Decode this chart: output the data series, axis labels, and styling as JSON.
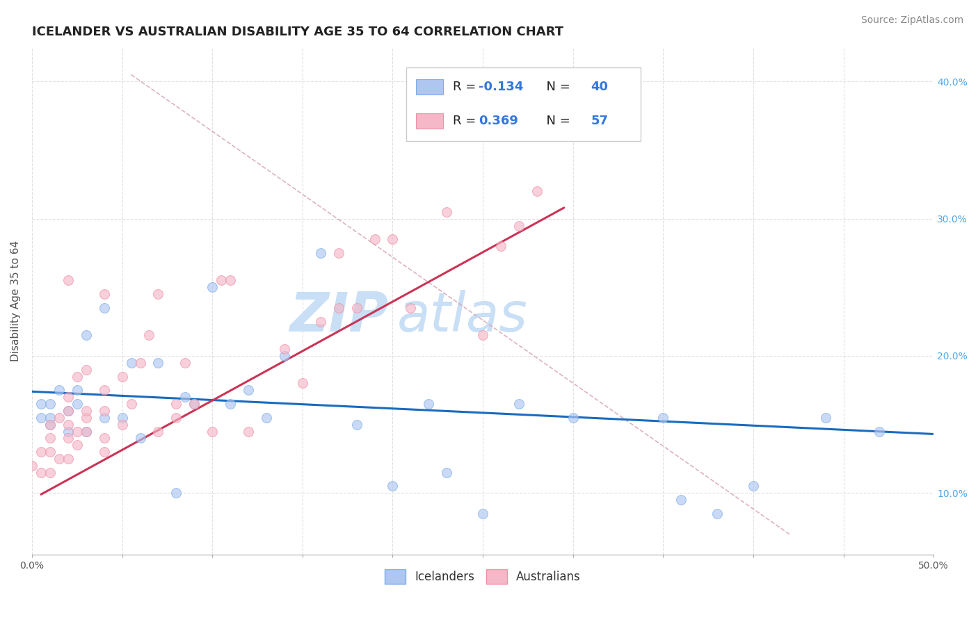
{
  "title": "ICELANDER VS AUSTRALIAN DISABILITY AGE 35 TO 64 CORRELATION CHART",
  "source": "Source: ZipAtlas.com",
  "ylabel": "Disability Age 35 to 64",
  "xlim": [
    0.0,
    0.5
  ],
  "ylim": [
    0.055,
    0.425
  ],
  "xticks": [
    0.0,
    0.05,
    0.1,
    0.15,
    0.2,
    0.25,
    0.3,
    0.35,
    0.4,
    0.45,
    0.5
  ],
  "xtick_labels_show": [
    "0.0%",
    "",
    "",
    "",
    "",
    "",
    "",
    "",
    "",
    "",
    "50.0%"
  ],
  "yticks": [
    0.1,
    0.2,
    0.3,
    0.4
  ],
  "ytick_labels": [
    "10.0%",
    "20.0%",
    "30.0%",
    "40.0%"
  ],
  "legend_entries": [
    {
      "label": "Icelanders",
      "R": "-0.134",
      "N": "40",
      "face_color": "#aec6f0",
      "edge_color": "#7baee8"
    },
    {
      "label": "Australians",
      "R": "0.369",
      "N": "57",
      "face_color": "#f4b8c8",
      "edge_color": "#f090a8"
    }
  ],
  "blue_scatter_x": [
    0.005,
    0.005,
    0.01,
    0.01,
    0.01,
    0.015,
    0.02,
    0.02,
    0.025,
    0.025,
    0.03,
    0.03,
    0.04,
    0.04,
    0.05,
    0.055,
    0.06,
    0.07,
    0.08,
    0.085,
    0.09,
    0.1,
    0.11,
    0.12,
    0.13,
    0.14,
    0.16,
    0.18,
    0.2,
    0.22,
    0.23,
    0.25,
    0.27,
    0.3,
    0.35,
    0.36,
    0.38,
    0.4,
    0.44,
    0.47
  ],
  "blue_scatter_y": [
    0.155,
    0.165,
    0.15,
    0.155,
    0.165,
    0.175,
    0.145,
    0.16,
    0.165,
    0.175,
    0.145,
    0.215,
    0.155,
    0.235,
    0.155,
    0.195,
    0.14,
    0.195,
    0.1,
    0.17,
    0.165,
    0.25,
    0.165,
    0.175,
    0.155,
    0.2,
    0.275,
    0.15,
    0.105,
    0.165,
    0.115,
    0.085,
    0.165,
    0.155,
    0.155,
    0.095,
    0.085,
    0.105,
    0.155,
    0.145
  ],
  "pink_scatter_x": [
    0.0,
    0.005,
    0.005,
    0.01,
    0.01,
    0.01,
    0.01,
    0.015,
    0.015,
    0.02,
    0.02,
    0.02,
    0.02,
    0.02,
    0.02,
    0.025,
    0.025,
    0.025,
    0.03,
    0.03,
    0.03,
    0.03,
    0.04,
    0.04,
    0.04,
    0.04,
    0.04,
    0.05,
    0.05,
    0.055,
    0.06,
    0.065,
    0.07,
    0.07,
    0.08,
    0.08,
    0.085,
    0.09,
    0.1,
    0.105,
    0.11,
    0.12,
    0.14,
    0.15,
    0.16,
    0.17,
    0.17,
    0.18,
    0.19,
    0.2,
    0.21,
    0.23,
    0.24,
    0.25,
    0.26,
    0.27,
    0.28
  ],
  "pink_scatter_y": [
    0.12,
    0.115,
    0.13,
    0.115,
    0.13,
    0.14,
    0.15,
    0.125,
    0.155,
    0.125,
    0.14,
    0.15,
    0.16,
    0.17,
    0.255,
    0.135,
    0.145,
    0.185,
    0.145,
    0.155,
    0.16,
    0.19,
    0.13,
    0.14,
    0.16,
    0.175,
    0.245,
    0.15,
    0.185,
    0.165,
    0.195,
    0.215,
    0.145,
    0.245,
    0.155,
    0.165,
    0.195,
    0.165,
    0.145,
    0.255,
    0.255,
    0.145,
    0.205,
    0.18,
    0.225,
    0.235,
    0.275,
    0.235,
    0.285,
    0.285,
    0.235,
    0.305,
    0.37,
    0.215,
    0.28,
    0.295,
    0.32
  ],
  "blue_line_x": [
    0.0,
    0.5
  ],
  "blue_line_y": [
    0.174,
    0.143
  ],
  "pink_line_x": [
    0.005,
    0.295
  ],
  "pink_line_y": [
    0.099,
    0.308
  ],
  "diagonal_line_x": [
    0.055,
    0.42
  ],
  "diagonal_line_y": [
    0.405,
    0.07
  ],
  "scatter_size": 100,
  "scatter_alpha": 0.65,
  "blue_face": "#aec6f0",
  "blue_edge": "#7baee8",
  "pink_face": "#f4b8c8",
  "pink_edge": "#f090a8",
  "blue_line_color": "#1a6bbf",
  "pink_line_color": "#cc3355",
  "diagonal_color": "#d4a0b0",
  "title_fontsize": 13,
  "axis_label_fontsize": 11,
  "tick_fontsize": 10,
  "source_fontsize": 10,
  "watermark_zip": "ZIP",
  "watermark_atlas": "atlas",
  "watermark_color_zip": "#c8dff5",
  "watermark_color_atlas": "#c8dff5",
  "grid_color": "#cccccc",
  "grid_alpha": 0.6
}
